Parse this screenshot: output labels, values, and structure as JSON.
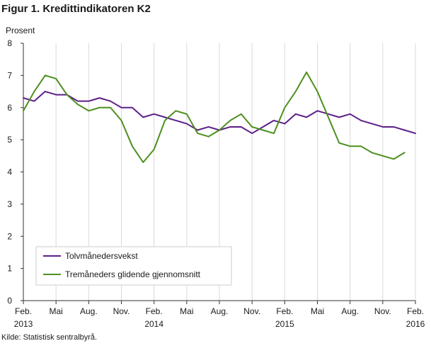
{
  "title": "Figur 1. Kredittindikatoren K2",
  "source": "Kilde: Statistisk sentralbyrå.",
  "chart_data": {
    "type": "line",
    "ylabel": "Prosent",
    "ylim": [
      0,
      8
    ],
    "yticks": [
      0,
      1,
      2,
      3,
      4,
      5,
      6,
      7,
      8
    ],
    "grid": "vertical",
    "legend_position": "bottom-left",
    "x": [
      "2013-02",
      "2013-03",
      "2013-04",
      "2013-05",
      "2013-06",
      "2013-07",
      "2013-08",
      "2013-09",
      "2013-10",
      "2013-11",
      "2013-12",
      "2014-01",
      "2014-02",
      "2014-03",
      "2014-04",
      "2014-05",
      "2014-06",
      "2014-07",
      "2014-08",
      "2014-09",
      "2014-10",
      "2014-11",
      "2014-12",
      "2015-01",
      "2015-02",
      "2015-03",
      "2015-04",
      "2015-05",
      "2015-06",
      "2015-07",
      "2015-08",
      "2015-09",
      "2015-10",
      "2015-11",
      "2015-12",
      "2016-01",
      "2016-02"
    ],
    "xtick_labels": [
      {
        "label": "Feb.",
        "sub": "2013"
      },
      {
        "label": "Mai",
        "sub": ""
      },
      {
        "label": "Aug.",
        "sub": ""
      },
      {
        "label": "Nov.",
        "sub": ""
      },
      {
        "label": "Feb.",
        "sub": "2014"
      },
      {
        "label": "Mai",
        "sub": ""
      },
      {
        "label": "Aug.",
        "sub": ""
      },
      {
        "label": "Nov.",
        "sub": ""
      },
      {
        "label": "Feb.",
        "sub": "2015"
      },
      {
        "label": "Mai",
        "sub": ""
      },
      {
        "label": "Aug.",
        "sub": ""
      },
      {
        "label": "Nov.",
        "sub": ""
      },
      {
        "label": "Feb.",
        "sub": "2016"
      }
    ],
    "series": [
      {
        "name": "Tolvmånedersvekst",
        "color": "#5c1f8a",
        "values": [
          6.3,
          6.2,
          6.5,
          6.4,
          6.4,
          6.2,
          6.2,
          6.3,
          6.2,
          6.0,
          6.0,
          5.7,
          5.8,
          5.7,
          5.6,
          5.5,
          5.3,
          5.4,
          5.3,
          5.4,
          5.4,
          5.2,
          5.4,
          5.6,
          5.5,
          5.8,
          5.7,
          5.9,
          5.8,
          5.7,
          5.8,
          5.6,
          5.5,
          5.4,
          5.4,
          5.3,
          5.2
        ]
      },
      {
        "name": "Tremåneders glidende gjennomsnitt",
        "color": "#4d8f1f",
        "values": [
          5.9,
          6.5,
          7.0,
          6.9,
          6.4,
          6.1,
          5.9,
          6.0,
          6.0,
          5.6,
          4.8,
          4.3,
          4.7,
          5.6,
          5.9,
          5.8,
          5.2,
          5.1,
          5.3,
          5.6,
          5.8,
          5.4,
          5.3,
          5.2,
          6.0,
          6.5,
          7.1,
          6.5,
          5.7,
          4.9,
          4.8,
          4.8,
          4.6,
          4.5,
          4.4,
          4.6,
          null
        ]
      }
    ]
  }
}
